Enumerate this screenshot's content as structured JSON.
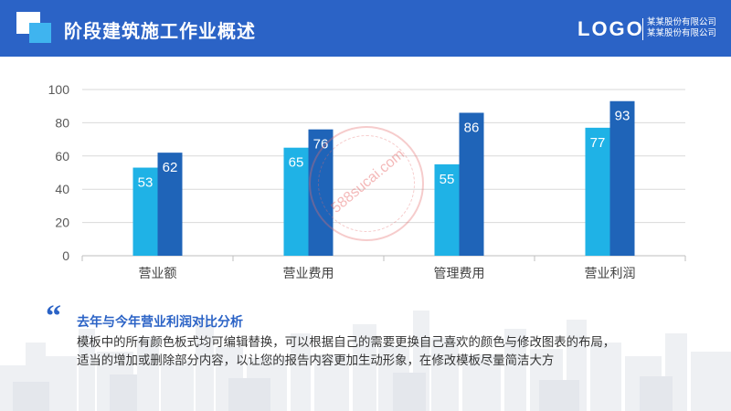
{
  "header": {
    "title": "阶段建筑施工作业概述",
    "logo": "LOGO",
    "company_lines": [
      "某某股份有限公司",
      "某某股份有限公司"
    ]
  },
  "colors": {
    "header_bg": "#2b63c6",
    "series_1": "#1fb2e6",
    "series_2": "#1f64b8",
    "accent": "#2b63c6"
  },
  "chart_data": {
    "type": "bar",
    "categories": [
      "营业额",
      "营业费用",
      "管理费用",
      "营业利润"
    ],
    "series": [
      {
        "values": [
          53,
          65,
          55,
          77
        ]
      },
      {
        "values": [
          62,
          76,
          86,
          93
        ]
      }
    ],
    "yticks": [
      0,
      20,
      40,
      60,
      80,
      100
    ],
    "ylim": [
      0,
      100
    ],
    "grid": true,
    "legend": "none"
  },
  "watermark": "588sucai.com",
  "text_block": {
    "heading": "去年与今年营业利润对比分析",
    "lines": [
      "模板中的所有颜色板式均可编辑替换，可以根据自己的需要更换自己喜欢的颜色与修改图表的布局，",
      "适当的增加或删除部分内容，以让您的报告内容更加生动形象，在修改模板尽量简洁大方"
    ]
  }
}
